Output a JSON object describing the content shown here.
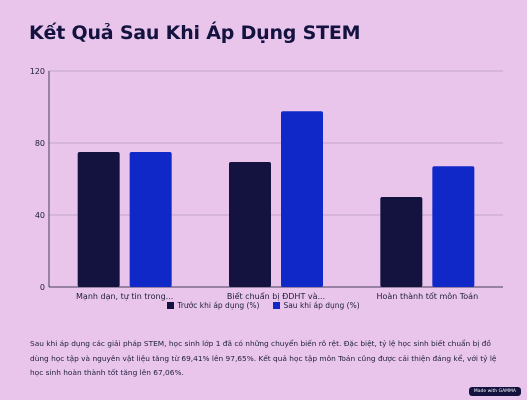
{
  "title": "Kết Quả Sau Khi Áp Dụng STEM",
  "chart_data": {
    "type": "bar",
    "categories": [
      "Mạnh dạn, tự tin trong...",
      "Biết chuẩn bị ĐDHT và...",
      "Hoàn thành tốt môn Toán"
    ],
    "series": [
      {
        "name": "Trước khi áp dụng (%)",
        "values": [
          75,
          69.41,
          50
        ],
        "color": "#141340"
      },
      {
        "name": "Sau khi áp dụng (%)",
        "values": [
          75,
          97.65,
          67.06
        ],
        "color": "#1128c8"
      }
    ],
    "yticks": [
      0,
      40,
      80,
      120
    ],
    "ylim": [
      0,
      120
    ],
    "grid": true,
    "legend": "bottom"
  },
  "description": "Sau khi áp dụng các giải pháp STEM, học sinh lớp 1 đã có những chuyển biến rõ rệt. Đặc biệt, tỷ lệ học sinh biết chuẩn bị đồ dùng học tập và nguyên vật liệu tăng từ 69,41% lên 97,65%. Kết quả học tập môn Toán cũng được cải thiện đáng kể, với tỷ lệ học sinh hoàn thành tốt tăng lên 67,06%.",
  "badge": "Made with GAMMA"
}
